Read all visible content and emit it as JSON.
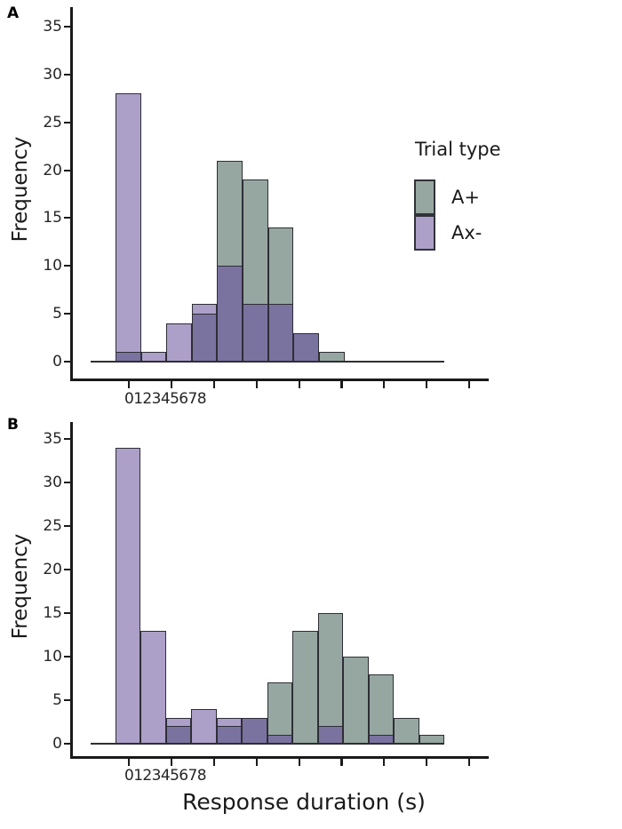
{
  "figure": {
    "panels": [
      {
        "label": "A",
        "ylabel": "Frequency",
        "x_ticklabel_text": "012345678"
      },
      {
        "label": "B",
        "ylabel": "Frequency",
        "x_ticklabel_text": "012345678"
      }
    ],
    "xlabel": "Response duration (s)",
    "legend": {
      "title": "Trial type",
      "items": [
        {
          "label": "A+",
          "color": "#96a7a1"
        },
        {
          "label": "Ax-",
          "color": "#aca0c8"
        }
      ]
    },
    "colors": {
      "a_plus": "#96a7a1",
      "ax_minus": "#aca0c8",
      "overlap": "#7a73a0",
      "edge": "#2e2e36"
    }
  },
  "chart_data": [
    {
      "type": "bar",
      "subtype": "overlaid-histogram",
      "panel": "A",
      "title": "",
      "xlabel": "",
      "ylabel": "Frequency",
      "yticks": [
        "0",
        "5",
        "10",
        "15",
        "20",
        "25",
        "30",
        "35"
      ],
      "ylim": [
        0,
        37
      ],
      "bins": 9,
      "x_tick_count": 9,
      "grid": false,
      "legend_position": "upper right",
      "series": [
        {
          "name": "A+",
          "values": [
            1,
            0,
            0,
            5,
            21,
            19,
            14,
            3,
            1
          ]
        },
        {
          "name": "Ax-",
          "values": [
            28,
            1,
            4,
            6,
            10,
            6,
            6,
            3,
            0
          ]
        }
      ]
    },
    {
      "type": "bar",
      "subtype": "overlaid-histogram",
      "panel": "B",
      "title": "",
      "xlabel": "Response duration (s)",
      "ylabel": "Frequency",
      "yticks": [
        "0",
        "5",
        "10",
        "15",
        "20",
        "25",
        "30",
        "35"
      ],
      "ylim": [
        0,
        37
      ],
      "bins": 13,
      "x_tick_count": 9,
      "grid": false,
      "legend_position": "none",
      "series": [
        {
          "name": "A+",
          "values": [
            0,
            0,
            2,
            0,
            2,
            3,
            7,
            13,
            15,
            10,
            8,
            3,
            1
          ]
        },
        {
          "name": "Ax-",
          "values": [
            34,
            13,
            3,
            4,
            3,
            3,
            1,
            0,
            2,
            0,
            1,
            0,
            0
          ]
        }
      ]
    }
  ]
}
